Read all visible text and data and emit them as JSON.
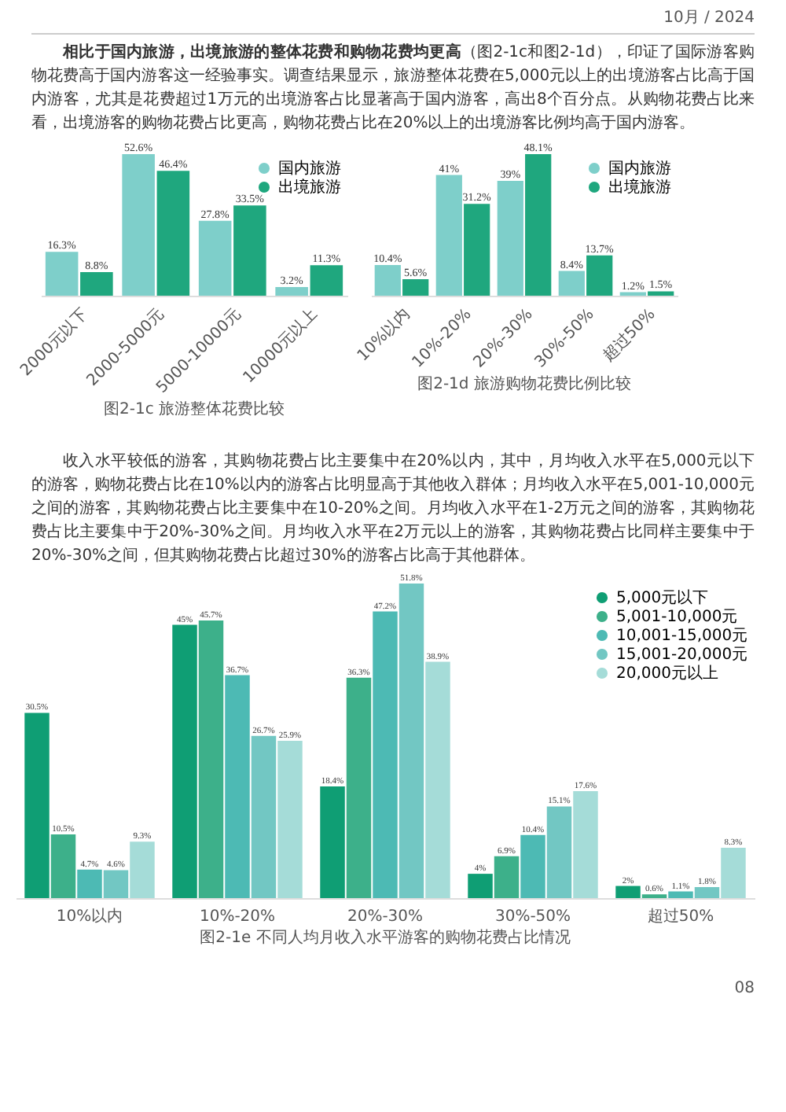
{
  "chart_data": [
    {
      "type": "other",
      "annotations": [
        "10月 / 2024"
      ]
    },
    {
      "type": "other",
      "title": "相比于国内旅游，出境旅游的整体花费和购物花费均更高",
      "annotations": [
        "（图2-1c和图2-1d），印证了国际游客购物花费高于国内游客这一经验事实。调查结果显示，旅游整体花费在5,000元以上的出境游客占比高于国内游客，尤其是花费超过1万元的出境游客占比显著高于国内游客，高出8个百分点。从购物花费占比来看，出境游客的购物花费占比更高，购物花费占比在20%以上的出境游客比例均高于国内游客。"
      ]
    },
    {
      "type": "bar",
      "title": "图2-1c 旅游整体花费比较",
      "categories": [
        "2000元以下",
        "2000-5000元",
        "5000-10000元",
        "10000元以上"
      ],
      "legend": "top right",
      "series": [
        {
          "name": "国内旅游",
          "color": "#7ecfca",
          "values": [
            16.3,
            52.6,
            27.8,
            3.2
          ],
          "value_labels": [
            "16.3%",
            "52.6%",
            "27.8%",
            "3.2%"
          ]
        },
        {
          "name": "出境旅游",
          "color": "#1fa77e",
          "values": [
            8.8,
            46.4,
            33.5,
            11.3
          ],
          "value_labels": [
            "8.8%",
            "46.4%",
            "33.5%",
            "11.3%"
          ]
        }
      ]
    },
    {
      "type": "bar",
      "title": "图2-1d 旅游购物花费比例比较",
      "categories": [
        "10%以内",
        "10%-20%",
        "20%-30%",
        "30%-50%",
        "超过50%"
      ],
      "legend": "top right",
      "series": [
        {
          "name": "国内旅游",
          "color": "#7ecfca",
          "values": [
            10.4,
            41,
            39,
            8.4,
            1.2
          ],
          "value_labels": [
            "10.4%",
            "41%",
            "39%",
            "8.4%",
            "1.2%"
          ]
        },
        {
          "name": "出境旅游",
          "color": "#1fa77e",
          "values": [
            5.6,
            31.2,
            48.1,
            13.7,
            1.5
          ],
          "value_labels": [
            "5.6%",
            "31.2%",
            "48.1%",
            "13.7%",
            "1.5%"
          ]
        }
      ]
    },
    {
      "type": "other",
      "annotations": [
        "收入水平较低的游客，其购物花费占比主要集中在20%以内，其中，月均收入水平在5,000元以下的游客，购物花费占比在10%以内的游客占比明显高于其他收入群体；月均收入水平在5,001-10,000元之间的游客，其购物花费占比主要集中在10-20%之间。月均收入水平在1-2万元之间的游客，其购物花费占比主要集中于20%-30%之间。月均收入水平在2万元以上的游客，其购物花费占比同样主要集中于20%-30%之间，但其购物花费占比超过30%的游客占比高于其他群体。"
      ]
    },
    {
      "type": "bar",
      "title": "图2-1e 不同人均月收入水平游客的购物花费占比情况",
      "categories": [
        "10%以内",
        "10%-20%",
        "20%-30%",
        "30%-50%",
        "超过50%"
      ],
      "legend": "top right",
      "series": [
        {
          "name": "5,000元以下",
          "color": "#0f9e74",
          "values": [
            30.5,
            45,
            18.4,
            4,
            2
          ],
          "value_labels": [
            "30.5%",
            "45%",
            "18.4%",
            "4%",
            "2%"
          ]
        },
        {
          "name": "5,001-10,000元",
          "color": "#3db08a",
          "values": [
            10.5,
            45.7,
            36.3,
            6.9,
            0.6
          ],
          "value_labels": [
            "10.5%",
            "45.7%",
            "36.3%",
            "6.9%",
            "0.6%"
          ]
        },
        {
          "name": "10,001-15,000元",
          "color": "#4dbab4",
          "values": [
            4.7,
            36.7,
            47.2,
            10.4,
            1.1
          ],
          "value_labels": [
            "4.7%",
            "36.7%",
            "47.2%",
            "10.4%",
            "1.1%"
          ]
        },
        {
          "name": "15,001-20,000元",
          "color": "#72c7c3",
          "values": [
            4.6,
            26.7,
            51.8,
            15.1,
            1.8
          ],
          "value_labels": [
            "4.6%",
            "26.7%",
            "51.8%",
            "15.1%",
            "1.8%"
          ]
        },
        {
          "name": "20,000元以上",
          "color": "#a5dcd8",
          "values": [
            9.3,
            25.9,
            38.9,
            17.6,
            8.3
          ],
          "value_labels": [
            "9.3%",
            "25.9%",
            "38.9%",
            "17.6%",
            "8.3%"
          ]
        }
      ]
    },
    {
      "type": "other",
      "annotations": [
        "08"
      ]
    }
  ]
}
